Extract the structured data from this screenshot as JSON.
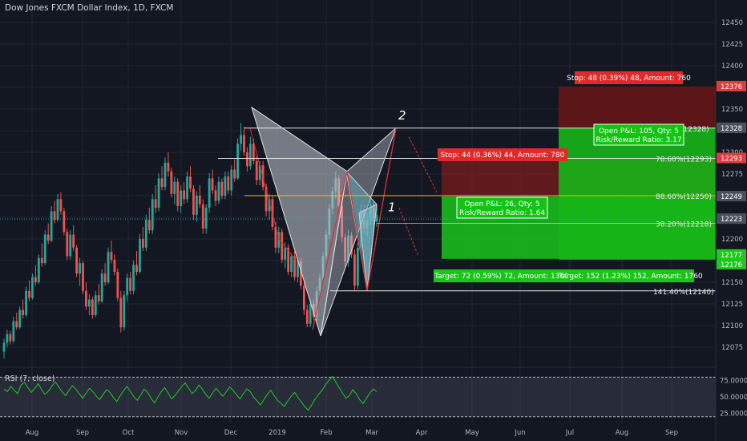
{
  "header": {
    "title": "Dow Jones FXCM Dollar Index, 1D, FXCM"
  },
  "rsi": {
    "label": "RSI (7, close)",
    "ticks": [
      "75.0000",
      "50.0000",
      "25.0000"
    ]
  },
  "colors": {
    "background": "#131722",
    "grid": "#1f2433",
    "bull": "#26a69a",
    "bear": "#ef5350",
    "rsi_line": "#22c82a",
    "stop_zone": "#8b1a1a",
    "target_zone": "#1bc41b",
    "pattern_fill": "#c9ccd6",
    "pattern_line": "#e03030",
    "axis_text": "#b2b5be"
  },
  "chart_data": {
    "type": "candlestick",
    "title": "Dow Jones FXCM Dollar Index, 1D, FXCM",
    "ylim": [
      12065,
      12462
    ],
    "y_ticks": [
      12075,
      12100,
      12125,
      12150,
      12175,
      12200,
      12225,
      12250,
      12275,
      12300,
      12325,
      12350,
      12375,
      12400,
      12425,
      12450
    ],
    "x_ticks": [
      "Aug",
      "Sep",
      "Oct",
      "Nov",
      "Dec",
      "2019",
      "Feb",
      "Mar",
      "Apr",
      "May",
      "Jun",
      "Jul",
      "Aug",
      "Sep"
    ],
    "price_labels": [
      {
        "text": "12376",
        "value": 12376,
        "color": "#e03b3b"
      },
      {
        "text": "12328",
        "value": 12328,
        "color": "#4a4f5c"
      },
      {
        "text": "12293",
        "value": 12293,
        "color": "#e03b3b"
      },
      {
        "text": "12249",
        "value": 12249,
        "color": "#4a4f5c"
      },
      {
        "text": "12223",
        "value": 12223,
        "color": "#4a4f5c"
      },
      {
        "text": "12177",
        "value": 12177,
        "color": "#1ec81e"
      },
      {
        "text": "12176",
        "value": 12176,
        "color": "#1ec81e"
      }
    ],
    "fib_labels": [
      "78.60%(12293)",
      "88.60%(12250)",
      "38.20%(12218)",
      "141.40%(12140)",
      "(12328)"
    ],
    "pattern_labels": [
      "1",
      "2"
    ],
    "positions": [
      {
        "stop": "Stop: 44 (0.36%) 44, Amount: 780",
        "pnl": "Open P&L: 26, Qty: 5",
        "rr": "Risk/Reward Ratio: 1.64",
        "target": "Target: 72 (0.59%) 72, Amount: 1360"
      },
      {
        "stop": "Stop: 48 (0.39%) 48, Amount: 760",
        "pnl": "Open P&L: 105, Qty: 5",
        "rr": "Risk/Reward Ratio: 3.17",
        "target": "Target: 152 (1.23%) 152, Amount: 1760"
      }
    ],
    "ohlc": [
      [
        12070,
        12085,
        12062,
        12080
      ],
      [
        12080,
        12095,
        12075,
        12090
      ],
      [
        12090,
        12094,
        12078,
        12082
      ],
      [
        12082,
        12110,
        12080,
        12105
      ],
      [
        12105,
        12115,
        12095,
        12098
      ],
      [
        12098,
        12122,
        12096,
        12118
      ],
      [
        12118,
        12130,
        12108,
        12112
      ],
      [
        12112,
        12145,
        12110,
        12140
      ],
      [
        12140,
        12152,
        12128,
        12132
      ],
      [
        12132,
        12160,
        12130,
        12156
      ],
      [
        12156,
        12170,
        12146,
        12150
      ],
      [
        12150,
        12182,
        12148,
        12178
      ],
      [
        12178,
        12195,
        12168,
        12172
      ],
      [
        12172,
        12210,
        12170,
        12205
      ],
      [
        12205,
        12218,
        12194,
        12198
      ],
      [
        12198,
        12238,
        12196,
        12232
      ],
      [
        12232,
        12244,
        12218,
        12222
      ],
      [
        12222,
        12252,
        12220,
        12246
      ],
      [
        12246,
        12254,
        12228,
        12232
      ],
      [
        12232,
        12236,
        12204,
        12208
      ],
      [
        12208,
        12212,
        12176,
        12180
      ],
      [
        12180,
        12210,
        12176,
        12205
      ],
      [
        12205,
        12216,
        12186,
        12190
      ],
      [
        12190,
        12193,
        12156,
        12160
      ],
      [
        12160,
        12178,
        12146,
        12172
      ],
      [
        12172,
        12174,
        12136,
        12140
      ],
      [
        12140,
        12150,
        12118,
        12122
      ],
      [
        12122,
        12136,
        12112,
        12130
      ],
      [
        12130,
        12133,
        12108,
        12112
      ],
      [
        12112,
        12140,
        12110,
        12135
      ],
      [
        12135,
        12148,
        12124,
        12128
      ],
      [
        12128,
        12165,
        12126,
        12160
      ],
      [
        12160,
        12172,
        12146,
        12150
      ],
      [
        12150,
        12190,
        12148,
        12185
      ],
      [
        12185,
        12198,
        12172,
        12176
      ],
      [
        12176,
        12182,
        12158,
        12162
      ],
      [
        12162,
        12166,
        12128,
        12132
      ],
      [
        12132,
        12140,
        12092,
        12098
      ],
      [
        12098,
        12140,
        12094,
        12135
      ],
      [
        12135,
        12160,
        12128,
        12155
      ],
      [
        12155,
        12162,
        12136,
        12140
      ],
      [
        12140,
        12175,
        12136,
        12170
      ],
      [
        12170,
        12186,
        12158,
        12162
      ],
      [
        12162,
        12206,
        12160,
        12200
      ],
      [
        12200,
        12214,
        12186,
        12190
      ],
      [
        12190,
        12228,
        12186,
        12222
      ],
      [
        12222,
        12236,
        12206,
        12210
      ],
      [
        12210,
        12252,
        12206,
        12246
      ],
      [
        12246,
        12262,
        12230,
        12236
      ],
      [
        12236,
        12276,
        12232,
        12270
      ],
      [
        12270,
        12284,
        12256,
        12260
      ],
      [
        12260,
        12294,
        12256,
        12288
      ],
      [
        12288,
        12300,
        12272,
        12278
      ],
      [
        12278,
        12282,
        12248,
        12252
      ],
      [
        12252,
        12272,
        12240,
        12266
      ],
      [
        12266,
        12270,
        12232,
        12238
      ],
      [
        12238,
        12262,
        12230,
        12256
      ],
      [
        12256,
        12266,
        12240,
        12246
      ],
      [
        12246,
        12278,
        12242,
        12272
      ],
      [
        12272,
        12284,
        12254,
        12258
      ],
      [
        12258,
        12262,
        12222,
        12228
      ],
      [
        12228,
        12255,
        12220,
        12250
      ],
      [
        12250,
        12262,
        12236,
        12240
      ],
      [
        12240,
        12246,
        12206,
        12212
      ],
      [
        12212,
        12240,
        12206,
        12236
      ],
      [
        12236,
        12276,
        12230,
        12270
      ],
      [
        12270,
        12280,
        12252,
        12256
      ],
      [
        12256,
        12262,
        12238,
        12244
      ],
      [
        12244,
        12272,
        12240,
        12266
      ],
      [
        12266,
        12270,
        12246,
        12250
      ],
      [
        12250,
        12278,
        12246,
        12272
      ],
      [
        12272,
        12278,
        12252,
        12256
      ],
      [
        12256,
        12285,
        12250,
        12280
      ],
      [
        12280,
        12292,
        12266,
        12270
      ],
      [
        12270,
        12316,
        12268,
        12310
      ],
      [
        12310,
        12334,
        12302,
        12320
      ],
      [
        12320,
        12330,
        12296,
        12300
      ],
      [
        12300,
        12306,
        12278,
        12284
      ],
      [
        12284,
        12318,
        12280,
        12310
      ],
      [
        12310,
        12316,
        12286,
        12290
      ],
      [
        12290,
        12296,
        12262,
        12268
      ],
      [
        12268,
        12290,
        12262,
        12285
      ],
      [
        12285,
        12290,
        12256,
        12260
      ],
      [
        12260,
        12264,
        12226,
        12232
      ],
      [
        12232,
        12252,
        12222,
        12246
      ],
      [
        12246,
        12250,
        12210,
        12214
      ],
      [
        12214,
        12220,
        12184,
        12190
      ],
      [
        12190,
        12214,
        12184,
        12208
      ],
      [
        12208,
        12212,
        12172,
        12176
      ],
      [
        12176,
        12196,
        12166,
        12190
      ],
      [
        12190,
        12194,
        12158,
        12162
      ],
      [
        12162,
        12184,
        12156,
        12180
      ],
      [
        12180,
        12186,
        12152,
        12156
      ],
      [
        12156,
        12178,
        12150,
        12174
      ],
      [
        12174,
        12178,
        12142,
        12146
      ],
      [
        12146,
        12150,
        12112,
        12118
      ],
      [
        12118,
        12124,
        12098,
        12102
      ],
      [
        12102,
        12130,
        12098,
        12125
      ],
      [
        12125,
        12130,
        12106,
        12110
      ],
      [
        12110,
        12145,
        12106,
        12140
      ],
      [
        12140,
        12160,
        12134,
        12155
      ],
      [
        12155,
        12185,
        12150,
        12180
      ],
      [
        12180,
        12210,
        12176,
        12205
      ],
      [
        12205,
        12240,
        12200,
        12235
      ],
      [
        12235,
        12260,
        12228,
        12255
      ],
      [
        12255,
        12278,
        12246,
        12270
      ],
      [
        12270,
        12274,
        12234,
        12238
      ],
      [
        12238,
        12244,
        12196,
        12202
      ],
      [
        12202,
        12206,
        12168,
        12174
      ],
      [
        12174,
        12210,
        12168,
        12204
      ],
      [
        12204,
        12208,
        12178,
        12182
      ],
      [
        12182,
        12188,
        12140,
        12146
      ],
      [
        12146,
        12196,
        12142,
        12190
      ],
      [
        12190,
        12240,
        12186,
        12234
      ],
      [
        12234,
        12240,
        12206,
        12212
      ],
      [
        12212,
        12230,
        12204,
        12222
      ],
      [
        12222,
        12246,
        12216,
        12240
      ],
      [
        12240,
        12244,
        12214,
        12220
      ],
      [
        12220,
        12238,
        12214,
        12228
      ]
    ],
    "rsi_values": [
      62,
      58,
      66,
      60,
      55,
      68,
      72,
      64,
      57,
      63,
      70,
      61,
      54,
      59,
      66,
      73,
      65,
      58,
      52,
      60,
      67,
      62,
      55,
      48,
      56,
      63,
      58,
      51,
      46,
      54,
      61,
      57,
      49,
      43,
      52,
      60,
      66,
      58,
      50,
      45,
      53,
      62,
      57,
      48,
      41,
      50,
      58,
      64,
      56,
      47,
      52,
      59,
      66,
      71,
      63,
      55,
      60,
      68,
      62,
      54,
      48,
      56,
      63,
      57,
      51,
      58,
      65,
      60,
      53,
      47,
      55,
      62,
      58,
      50,
      44,
      38,
      46,
      54,
      60,
      52,
      45,
      40,
      36,
      44,
      51,
      57,
      49,
      42,
      35,
      30,
      38,
      47,
      54,
      60,
      68,
      75,
      81,
      73,
      64,
      56,
      48,
      52,
      61,
      55,
      46,
      40,
      48,
      56,
      62,
      58
    ],
    "rsi_ylim": [
      10,
      95
    ]
  }
}
